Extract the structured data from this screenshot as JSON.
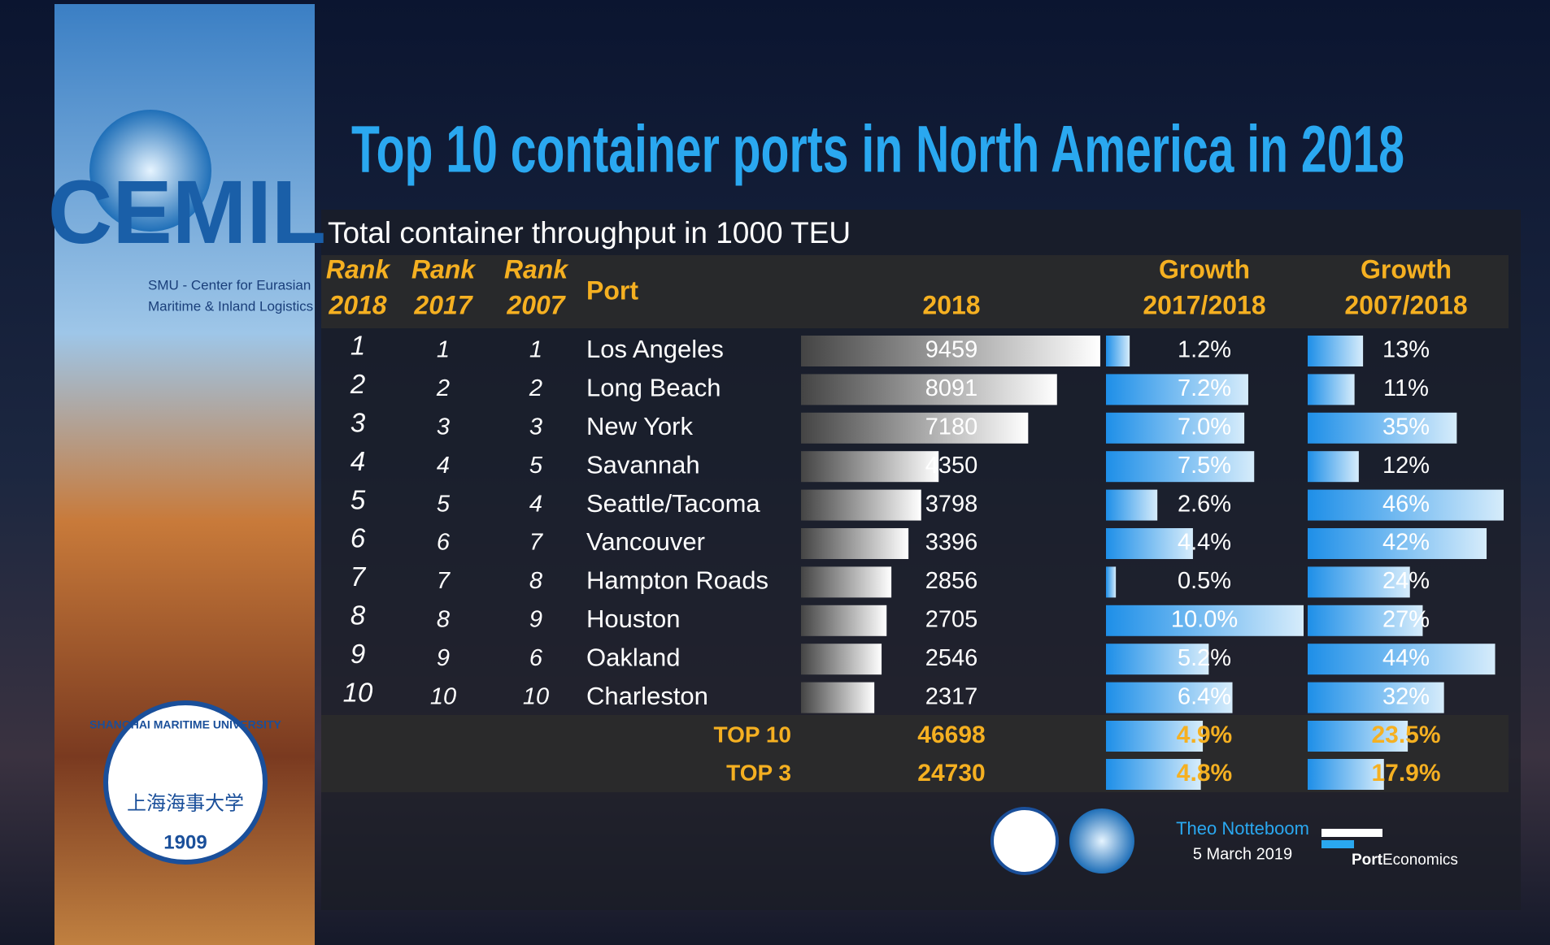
{
  "title": "Top 10 container ports in North America in 2018",
  "subtitle": "Total container throughput in 1000 TEU",
  "table": {
    "columns": [
      [
        "Rank",
        "2018"
      ],
      [
        "Rank",
        "2017"
      ],
      [
        "Rank",
        "2007"
      ],
      [
        "Port"
      ],
      [
        "2018"
      ],
      [
        "Growth",
        "2017/2018"
      ],
      [
        "Growth",
        "2007/2018"
      ]
    ],
    "rows": [
      [
        "1",
        "1",
        "1",
        "Los Angeles",
        "9459",
        "1.2%",
        "13%"
      ],
      [
        "2",
        "2",
        "2",
        "Long Beach",
        "8091",
        "7.2%",
        "11%"
      ],
      [
        "3",
        "3",
        "3",
        "New York",
        "7180",
        "7.0%",
        "35%"
      ],
      [
        "4",
        "4",
        "5",
        "Savannah",
        "4350",
        "7.5%",
        "12%"
      ],
      [
        "5",
        "5",
        "4",
        "Seattle/Tacoma",
        "3798",
        "2.6%",
        "46%"
      ],
      [
        "6",
        "6",
        "7",
        "Vancouver",
        "3396",
        "4.4%",
        "42%"
      ],
      [
        "7",
        "7",
        "8",
        "Hampton Roads",
        "2856",
        "0.5%",
        "24%"
      ],
      [
        "8",
        "8",
        "9",
        "Houston",
        "2705",
        "10.0%",
        "27%"
      ],
      [
        "9",
        "9",
        "6",
        "Oakland",
        "2546",
        "5.2%",
        "44%"
      ],
      [
        "10",
        "10",
        "10",
        "Charleston",
        "2317",
        "6.4%",
        "32%"
      ]
    ],
    "totals": [
      [
        "TOP 10",
        "46698",
        "4.9%",
        "23.5%"
      ],
      [
        "TOP 3",
        "24730",
        "4.8%",
        "17.9%"
      ]
    ]
  },
  "logo": {
    "name": "CEMIL",
    "line1": "SMU - Center for Eurasian",
    "line2": "Maritime & Inland Logistics"
  },
  "seal": {
    "name": "SHANGHAI MARITIME UNIVERSITY",
    "chinese": "上海海事大学",
    "year": "1909"
  },
  "footer": {
    "author": "Theo Notteboom",
    "date": "5 March 2019",
    "brand_bold": "Port",
    "brand": "Economics"
  }
}
